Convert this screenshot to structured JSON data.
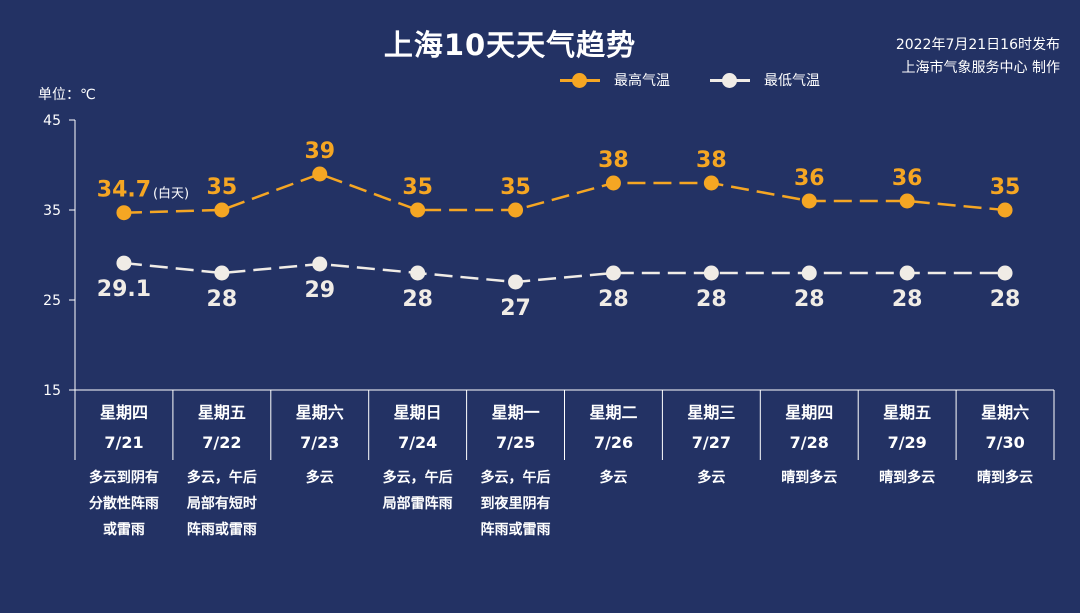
{
  "title": "上海10天天气趋势",
  "publish": {
    "line1": "2022年7月21日16时发布",
    "line2": "上海市气象服务中心 制作"
  },
  "unit": "单位：℃",
  "legend": {
    "high": "最高气温",
    "low": "最低气温"
  },
  "colors": {
    "background": "#233264",
    "high": "#f5a623",
    "low": "#f0ece6"
  },
  "chart_data": {
    "type": "line",
    "title": "上海10天天气趋势",
    "ylabel": "单位：℃",
    "ylim": [
      15,
      45
    ],
    "yticks": [
      15,
      25,
      35,
      45
    ],
    "grid": false,
    "legend_position": "top-right",
    "categories": [
      "7/21",
      "7/22",
      "7/23",
      "7/24",
      "7/25",
      "7/26",
      "7/27",
      "7/28",
      "7/29",
      "7/30"
    ],
    "series": [
      {
        "name": "最高气温",
        "values": [
          34.7,
          35,
          39,
          35,
          35,
          38,
          38,
          36,
          36,
          35
        ],
        "labels": [
          "34.7",
          "35",
          "39",
          "35",
          "35",
          "38",
          "38",
          "36",
          "36",
          "35"
        ]
      },
      {
        "name": "最低气温",
        "values": [
          29.1,
          28,
          29,
          28,
          27,
          28,
          28,
          28,
          28,
          28
        ],
        "labels": [
          "29.1",
          "28",
          "29",
          "28",
          "27",
          "28",
          "28",
          "28",
          "28",
          "28"
        ]
      }
    ],
    "annotations": [
      {
        "category": "7/21",
        "series": "最高气温",
        "text": "(白天)"
      }
    ]
  },
  "days": [
    {
      "weekday": "星期四",
      "date": "7/21",
      "weather": [
        "多云到阴有",
        "分散性阵雨",
        "或雷雨"
      ]
    },
    {
      "weekday": "星期五",
      "date": "7/22",
      "weather": [
        "多云，午后",
        "局部有短时",
        "阵雨或雷雨"
      ]
    },
    {
      "weekday": "星期六",
      "date": "7/23",
      "weather": [
        "多云"
      ]
    },
    {
      "weekday": "星期日",
      "date": "7/24",
      "weather": [
        "多云，午后",
        "局部雷阵雨"
      ]
    },
    {
      "weekday": "星期一",
      "date": "7/25",
      "weather": [
        "多云，午后",
        "到夜里阴有",
        "阵雨或雷雨"
      ]
    },
    {
      "weekday": "星期二",
      "date": "7/26",
      "weather": [
        "多云"
      ]
    },
    {
      "weekday": "星期三",
      "date": "7/27",
      "weather": [
        "多云"
      ]
    },
    {
      "weekday": "星期四",
      "date": "7/28",
      "weather": [
        "晴到多云"
      ]
    },
    {
      "weekday": "星期五",
      "date": "7/29",
      "weather": [
        "晴到多云"
      ]
    },
    {
      "weekday": "星期六",
      "date": "7/30",
      "weather": [
        "晴到多云"
      ]
    }
  ]
}
